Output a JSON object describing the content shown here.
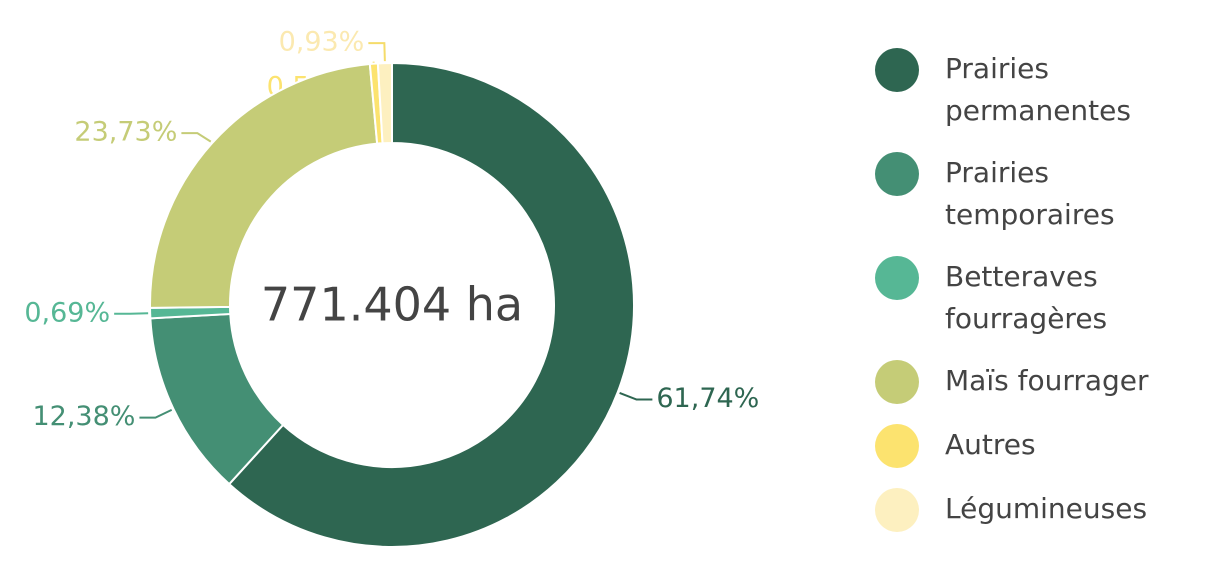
{
  "chart_data": {
    "type": "donut",
    "center_label": "771.404 ha",
    "categories": [
      "Prairies permanentes",
      "Prairies temporaires",
      "Betteraves fourragères",
      "Maïs fourrager",
      "Autres",
      "Légumineuses"
    ],
    "values": [
      61.74,
      12.38,
      0.69,
      23.73,
      0.53,
      0.93
    ],
    "value_labels": [
      "61,74%",
      "12,38%",
      "0,69%",
      "23,73%",
      "0,53%",
      "0,93%"
    ],
    "colors": [
      "#2e6651",
      "#448f74",
      "#56b795",
      "#c5cc77",
      "#fce36f",
      "#fdf0c0"
    ],
    "legend": "right"
  }
}
